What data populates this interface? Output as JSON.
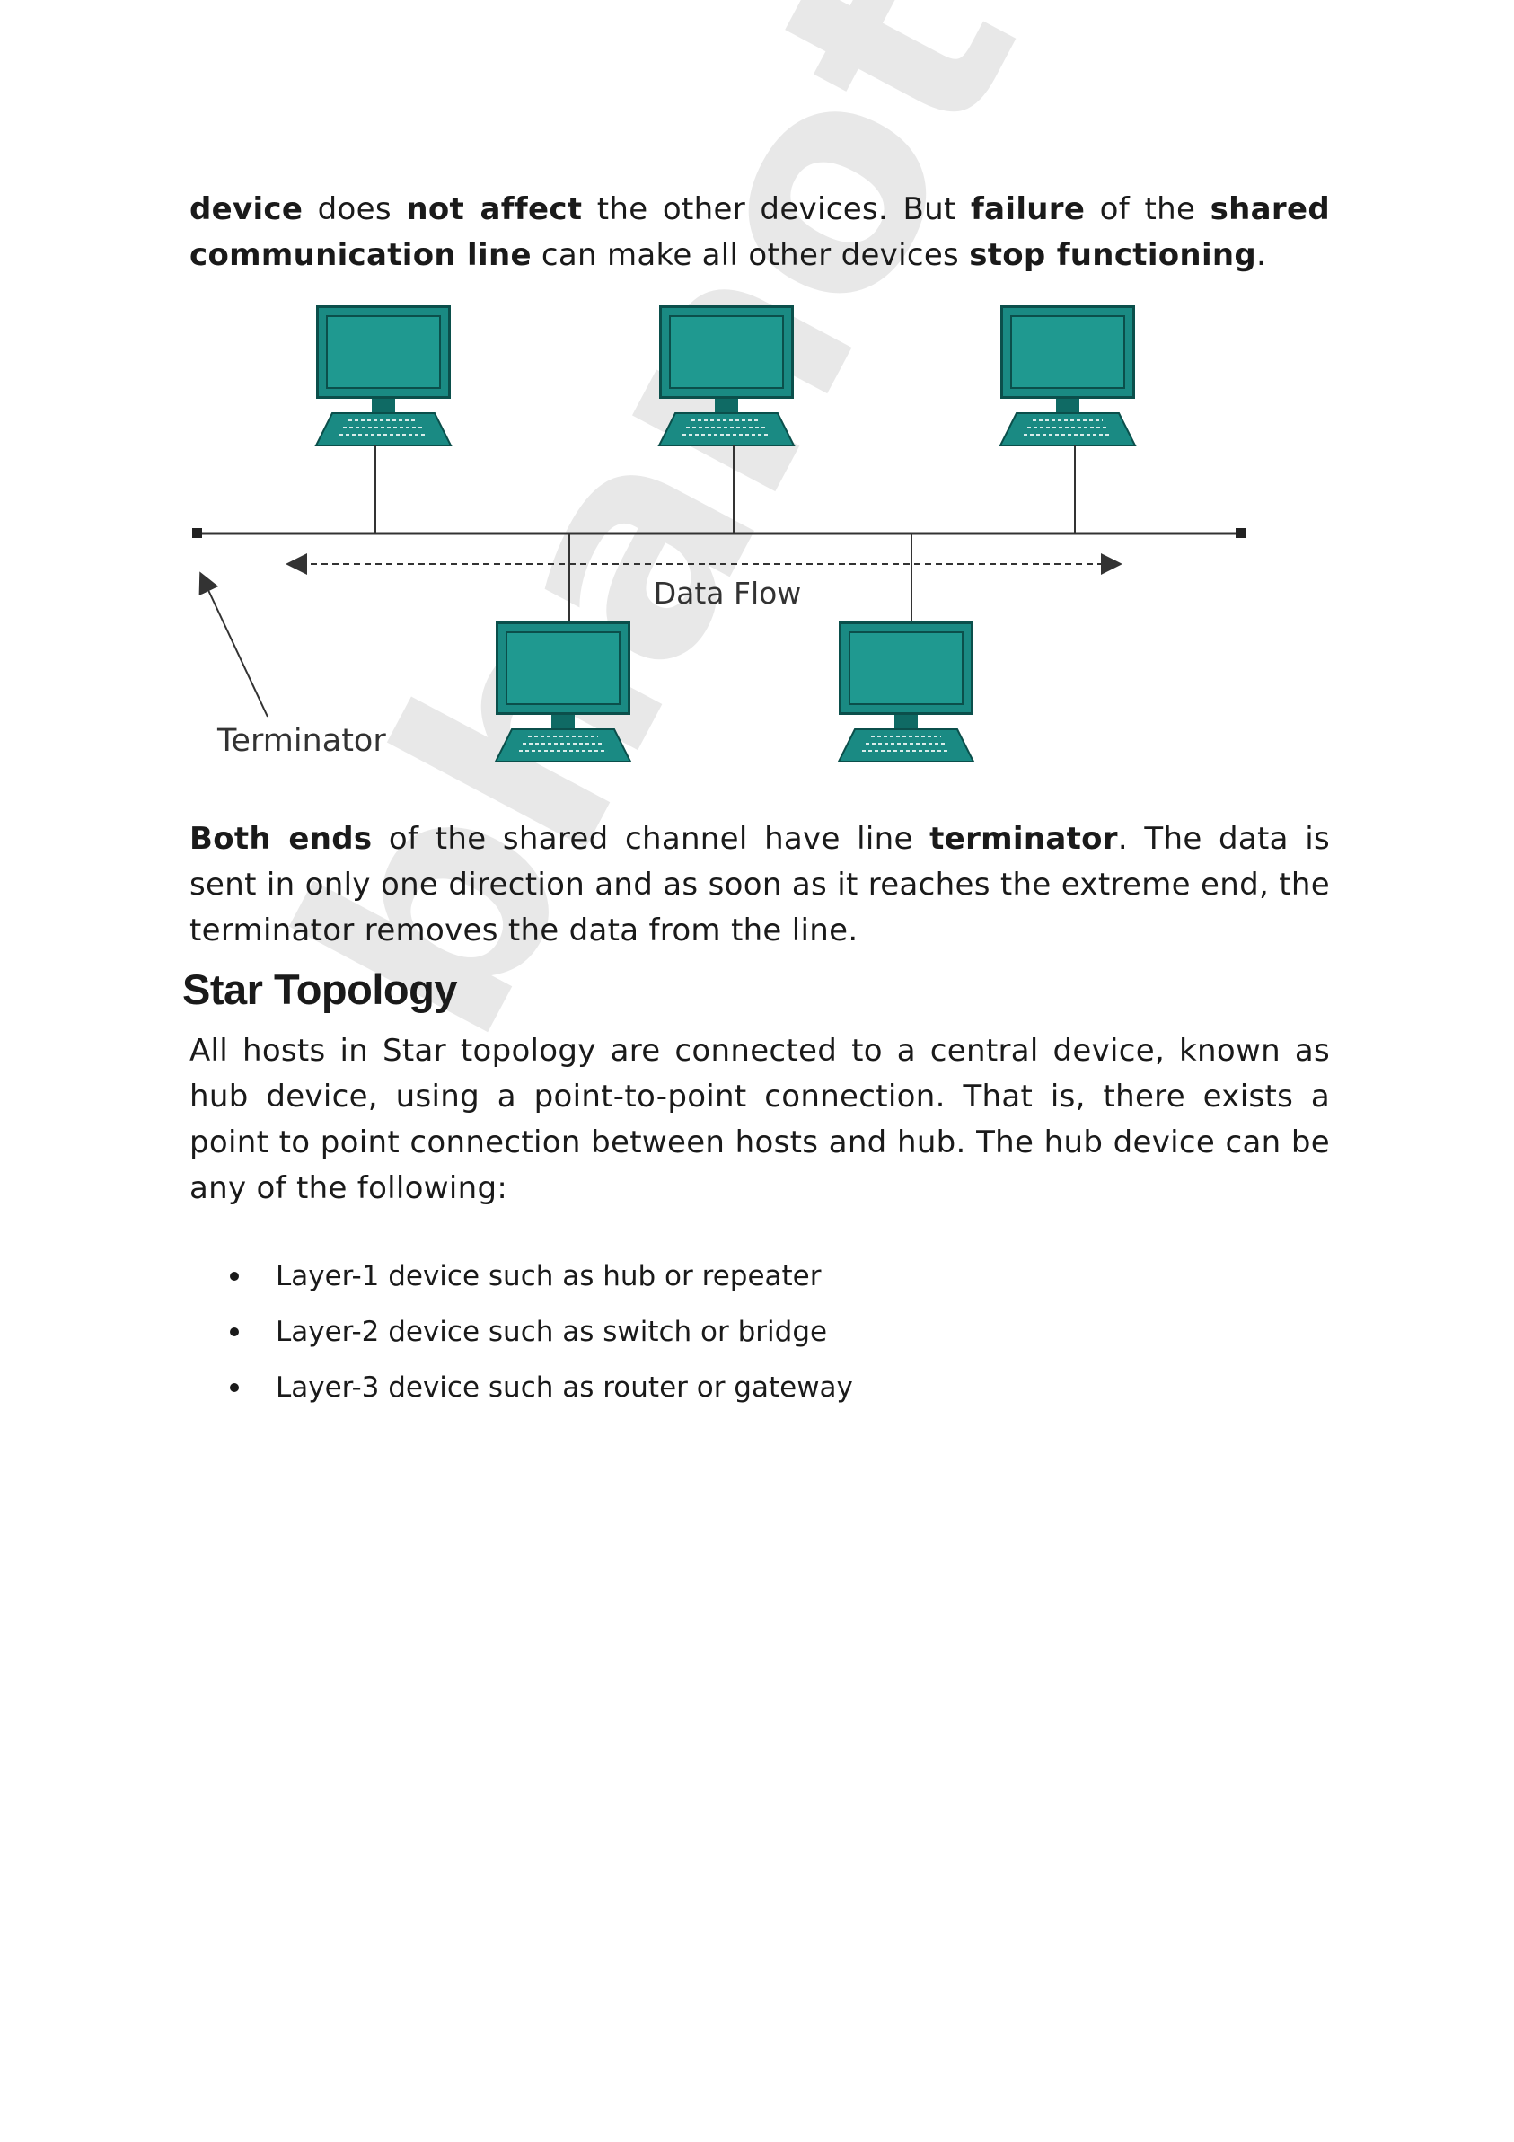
{
  "paragraph1": {
    "t1": "device",
    "t2": " does ",
    "t3": "not affect",
    "t4": " the other devices. But ",
    "t5": "failure",
    "t6": " of the ",
    "t7": "shared communication line",
    "t8": " can make all other devices ",
    "t9": "stop functioning",
    "t10": "."
  },
  "diagram": {
    "data_flow_label": "Data Flow",
    "terminator_label": "Terminator",
    "colors": {
      "monitor": "#1a8a83",
      "monitor_dark": "#0b4f4b",
      "line": "#333333"
    }
  },
  "paragraph2": {
    "t1": "Both ends",
    "t2": " of the shared channel have line ",
    "t3": "terminator",
    "t4": ". The data is sent in only one direction and as soon as it reaches the extreme end, the terminator removes the data from the line."
  },
  "section": {
    "title": "Star Topology"
  },
  "paragraph3": "All hosts in Star topology are connected to a central device, known as hub device, using a point-to-point connection. That is, there exists a point to point connection between hosts and hub. The hub device can be any of the following:",
  "list": [
    "Layer-1 device such as hub or repeater",
    "Layer-2 device such as switch or bridge",
    "Layer-3 device such as router or gateway"
  ],
  "watermark": "bhanote"
}
